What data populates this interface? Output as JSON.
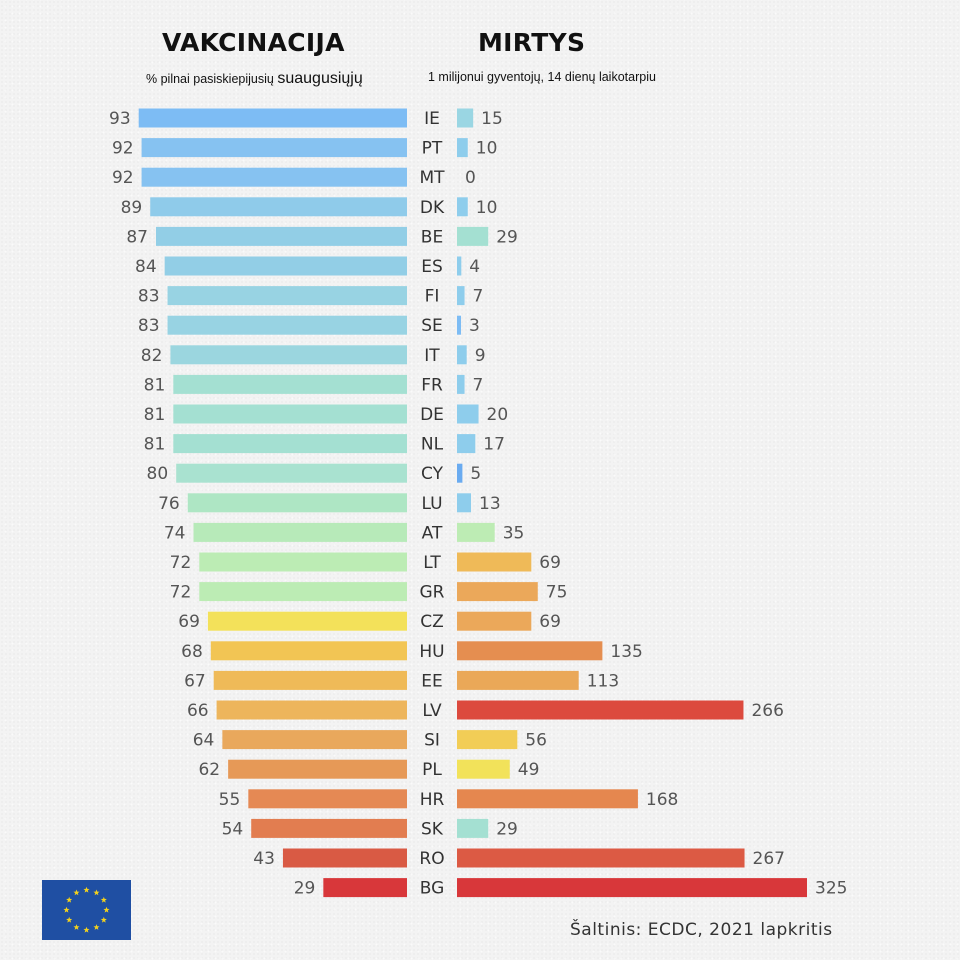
{
  "titles": {
    "left": "VAKCINACIJA",
    "right": "MIRTYS",
    "left_subtitle_small": "% pilnai pasiskiepijusių",
    "left_subtitle_big": "suaugusiųjų",
    "right_subtitle": "1 milijonui gyventojų, 14 dienų laikotarpiu"
  },
  "source": "Šaltinis:  ECDC, 2021 lapkritis",
  "chart_data": {
    "type": "bar",
    "orientation": "horizontal",
    "layout": "butterfly",
    "categories": [
      "IE",
      "PT",
      "MT",
      "DK",
      "BE",
      "ES",
      "FI",
      "SE",
      "IT",
      "FR",
      "DE",
      "NL",
      "CY",
      "LU",
      "AT",
      "LT",
      "GR",
      "CZ",
      "HU",
      "EE",
      "LV",
      "SI",
      "PL",
      "HR",
      "SK",
      "RO",
      "BG"
    ],
    "series": [
      {
        "name": "VAKCINACIJA",
        "values": [
          93,
          92,
          92,
          89,
          87,
          84,
          83,
          83,
          82,
          81,
          81,
          81,
          80,
          76,
          74,
          72,
          72,
          69,
          68,
          67,
          66,
          64,
          62,
          55,
          54,
          43,
          29
        ],
        "colors": [
          "#7dbcf4",
          "#86c2f1",
          "#86c2f1",
          "#8fcbea",
          "#92cee6",
          "#92cee6",
          "#98d3e3",
          "#98d3e3",
          "#9bd6df",
          "#a4e0d2",
          "#a4e0d2",
          "#a4e0d2",
          "#a9e2d0",
          "#aee6c4",
          "#b7eab9",
          "#bcecb4",
          "#bcecb4",
          "#f3e15a",
          "#f2c554",
          "#efba58",
          "#edb55c",
          "#e9a85c",
          "#e69957",
          "#e58954",
          "#e27d50",
          "#d95a44",
          "#d8373a"
        ]
      },
      {
        "name": "MIRTYS",
        "values": [
          15,
          10,
          0,
          10,
          29,
          4,
          7,
          3,
          9,
          7,
          20,
          17,
          5,
          13,
          35,
          69,
          75,
          69,
          135,
          113,
          266,
          56,
          49,
          168,
          29,
          267,
          325
        ],
        "colors": [
          "#9ad6e3",
          "#8ecdec",
          "#8ecdec",
          "#8ecdec",
          "#a4e0d2",
          "#8ecdec",
          "#8ecdec",
          "#7dbcf4",
          "#8ecdec",
          "#8ecdec",
          "#8ecdec",
          "#8ecdec",
          "#6aabf0",
          "#8ecdec",
          "#bdecb4",
          "#efba58",
          "#eba85a",
          "#eba85a",
          "#e58e50",
          "#eaa858",
          "#dc4a3e",
          "#f2cd56",
          "#f2e25a",
          "#e5874f",
          "#a4e0d2",
          "#dc5a44",
          "#d8373a"
        ]
      }
    ],
    "left_axis_max": 100,
    "right_axis_max": 325,
    "grid": false,
    "legend": "none"
  }
}
